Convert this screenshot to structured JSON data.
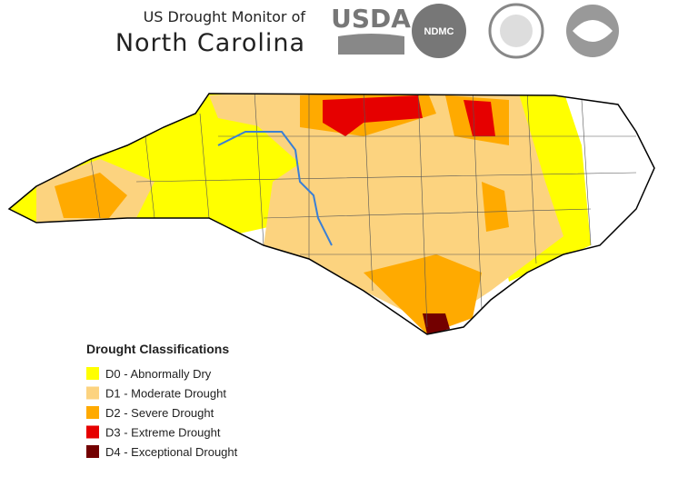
{
  "header": {
    "subtitle": "US Drought Monitor of",
    "title": "North Carolina",
    "logos": [
      "USDA",
      "NDMC"
    ]
  },
  "legend": {
    "title": "Drought Classifications",
    "items": [
      {
        "label": "D0 - Abnormally Dry",
        "color": "#ffff00"
      },
      {
        "label": "D1 - Moderate Drought",
        "color": "#fcd37f"
      },
      {
        "label": "D2 - Severe Drought",
        "color": "#ffaa00"
      },
      {
        "label": "D3 - Extreme Drought",
        "color": "#e60000"
      },
      {
        "label": "D4 - Exceptional Drought",
        "color": "#730000"
      }
    ]
  }
}
